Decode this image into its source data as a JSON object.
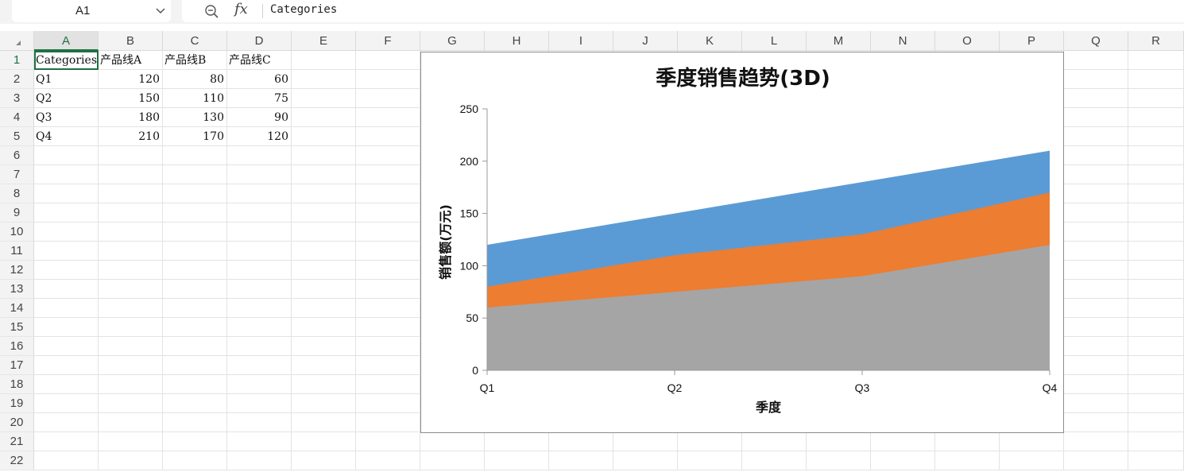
{
  "formula_bar": {
    "name_box": "A1",
    "fx_label": "fx",
    "formula": "Categories"
  },
  "columns": [
    "A",
    "B",
    "C",
    "D",
    "E",
    "F",
    "G",
    "H",
    "I",
    "J",
    "K",
    "L",
    "M",
    "N",
    "O",
    "P",
    "Q",
    "R"
  ],
  "rows": [
    "1",
    "2",
    "3",
    "4",
    "5",
    "6",
    "7",
    "8",
    "9",
    "10",
    "11",
    "12",
    "13",
    "14",
    "15",
    "16",
    "17",
    "18",
    "19",
    "20",
    "21",
    "22"
  ],
  "cells": [
    [
      "Categories",
      "产品线A",
      "产品线B",
      "产品线C"
    ],
    [
      "Q1",
      "120",
      "80",
      "60"
    ],
    [
      "Q2",
      "150",
      "110",
      "75"
    ],
    [
      "Q3",
      "180",
      "130",
      "90"
    ],
    [
      "Q4",
      "210",
      "170",
      "120"
    ]
  ],
  "selected_cell": "A1",
  "chart_data": {
    "type": "area",
    "title": "季度销售趋势(3D)",
    "xlabel": "季度",
    "ylabel": "销售额(万元)",
    "categories": [
      "Q1",
      "Q2",
      "Q3",
      "Q4"
    ],
    "ylim": [
      0,
      250
    ],
    "yticks": [
      "0",
      "50",
      "100",
      "150",
      "200",
      "250"
    ],
    "legend": "none",
    "grid": false,
    "series": [
      {
        "name": "产品线A",
        "values": [
          120,
          150,
          180,
          210
        ],
        "color": "#5b9bd5"
      },
      {
        "name": "产品线B",
        "values": [
          80,
          110,
          130,
          170
        ],
        "color": "#ed7d31"
      },
      {
        "name": "产品线C",
        "values": [
          60,
          75,
          90,
          120
        ],
        "color": "#a5a5a5"
      }
    ]
  }
}
